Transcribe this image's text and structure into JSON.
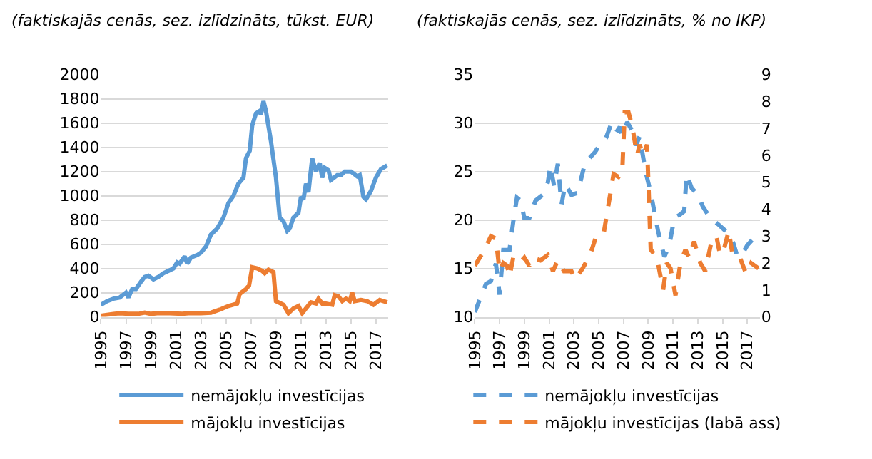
{
  "chart_data": [
    {
      "type": "line",
      "title": "(faktiskajās cenās, sez. izlīdzināts, tūkst. EUR)",
      "line_style": "solid",
      "grid": "y",
      "legend": "bottom",
      "xlim": [
        1995,
        2018
      ],
      "xticks": [
        1995,
        1997,
        1999,
        2001,
        2003,
        2005,
        2007,
        2009,
        2011,
        2013,
        2015,
        2017
      ],
      "ylim": [
        0,
        2000
      ],
      "yticks": [
        0,
        200,
        400,
        600,
        800,
        1000,
        1200,
        1400,
        1600,
        1800,
        2000
      ],
      "series": [
        {
          "name": "nemājokļu investīcijas",
          "color": "#5b9bd5",
          "x": [
            1995.0,
            1995.5,
            1996.0,
            1996.5,
            1997.0,
            1997.2,
            1997.5,
            1997.8,
            1998.2,
            1998.5,
            1998.8,
            1999.2,
            1999.6,
            2000.0,
            2000.4,
            2000.8,
            2001.1,
            2001.3,
            2001.7,
            2001.9,
            2002.2,
            2002.7,
            2003.0,
            2003.4,
            2003.8,
            2004.3,
            2004.8,
            2005.2,
            2005.6,
            2006.0,
            2006.4,
            2006.6,
            2006.9,
            2007.1,
            2007.4,
            2007.7,
            2007.8,
            2008.0,
            2008.2,
            2008.6,
            2009.0,
            2009.3,
            2009.6,
            2009.9,
            2010.1,
            2010.4,
            2010.8,
            2011.0,
            2011.2,
            2011.4,
            2011.6,
            2011.9,
            2012.2,
            2012.5,
            2012.7,
            2012.9,
            2013.2,
            2013.4,
            2013.9,
            2014.2,
            2014.5,
            2015.0,
            2015.5,
            2015.7,
            2016.0,
            2016.2,
            2016.6,
            2017.0,
            2017.4,
            2017.9
          ],
          "values": [
            100,
            130,
            150,
            160,
            200,
            160,
            230,
            230,
            290,
            330,
            340,
            310,
            330,
            360,
            380,
            400,
            450,
            440,
            500,
            440,
            490,
            510,
            530,
            580,
            680,
            730,
            820,
            940,
            1000,
            1100,
            1150,
            1310,
            1370,
            1580,
            1680,
            1700,
            1670,
            1780,
            1700,
            1450,
            1150,
            820,
            790,
            710,
            730,
            820,
            860,
            990,
            970,
            1100,
            1030,
            1310,
            1200,
            1270,
            1150,
            1230,
            1210,
            1130,
            1170,
            1170,
            1200,
            1200,
            1160,
            1170,
            990,
            970,
            1040,
            1150,
            1220,
            1250
          ]
        },
        {
          "name": "mājokļu investīcijas",
          "color": "#ed7d31",
          "x": [
            1995.0,
            1996.0,
            1996.5,
            1997.2,
            1998.0,
            1998.5,
            1999.0,
            1999.5,
            2000.5,
            2001.5,
            2002.0,
            2003.0,
            2003.8,
            2004.5,
            2005.2,
            2005.9,
            2006.1,
            2006.6,
            2006.85,
            2007.1,
            2007.5,
            2007.9,
            2008.1,
            2008.4,
            2008.8,
            2009.0,
            2009.6,
            2010.0,
            2010.4,
            2010.8,
            2011.1,
            2011.4,
            2011.8,
            2012.2,
            2012.4,
            2012.7,
            2013.0,
            2013.5,
            2013.7,
            2014.0,
            2014.3,
            2014.6,
            2014.9,
            2015.1,
            2015.3,
            2015.8,
            2016.3,
            2016.8,
            2017.3,
            2017.9
          ],
          "values": [
            10,
            25,
            30,
            25,
            25,
            35,
            25,
            30,
            30,
            25,
            30,
            30,
            35,
            60,
            90,
            110,
            190,
            230,
            260,
            410,
            400,
            380,
            360,
            390,
            370,
            130,
            100,
            30,
            70,
            90,
            30,
            70,
            120,
            110,
            150,
            110,
            110,
            100,
            180,
            170,
            130,
            150,
            130,
            200,
            130,
            140,
            130,
            100,
            140,
            120
          ]
        }
      ]
    },
    {
      "type": "line",
      "title": "(faktiskajās cenās, sez. izlīdzināts, % no IKP)",
      "line_style": "dashed",
      "grid": "y",
      "legend": "bottom",
      "xlim": [
        1995,
        2018
      ],
      "xticks": [
        1995,
        1997,
        1999,
        2001,
        2003,
        2005,
        2007,
        2009,
        2011,
        2013,
        2015,
        2017
      ],
      "ylim": [
        10,
        35
      ],
      "yticks": [
        10,
        15,
        20,
        25,
        30,
        35
      ],
      "y2lim": [
        0,
        9
      ],
      "y2ticks": [
        0,
        1,
        2,
        3,
        4,
        5,
        6,
        7,
        8,
        9
      ],
      "series": [
        {
          "name": "nemājokļu investīcijas",
          "color": "#5b9bd5",
          "x": [
            1995.0,
            1995.9,
            1996.3,
            1996.7,
            1997.0,
            1997.3,
            1997.8,
            1998.1,
            1998.4,
            1998.7,
            1999.0,
            1999.4,
            1999.9,
            2000.5,
            2000.9,
            2001.1,
            2001.4,
            2001.7,
            2002.0,
            2002.3,
            2002.8,
            2003.3,
            2003.9,
            2004.7,
            2005.2,
            2005.6,
            2006.0,
            2006.4,
            2006.7,
            2006.9,
            2007.3,
            2007.7,
            2008.0,
            2008.3,
            2008.8,
            2009.2,
            2009.8,
            2010.3,
            2010.7,
            2011.1,
            2011.5,
            2011.9,
            2012.1,
            2012.5,
            2013.0,
            2013.4,
            2014.0,
            2014.7,
            2015.3,
            2015.8,
            2016.2,
            2016.6,
            2017.0,
            2017.5,
            2017.9
          ],
          "values": [
            10.5,
            13.4,
            13.7,
            15.5,
            12.3,
            16.9,
            16.9,
            19.8,
            22.3,
            22,
            20.2,
            20.2,
            22,
            22.6,
            23.9,
            25.6,
            23.5,
            25.8,
            21.6,
            23.7,
            22.6,
            22.8,
            25.9,
            27,
            28,
            28.5,
            29.9,
            29,
            29.6,
            28.7,
            30.1,
            29.2,
            27.7,
            28.6,
            24.9,
            22.8,
            18.8,
            16.2,
            17.4,
            20.2,
            20.5,
            20.9,
            24.7,
            23.3,
            22.6,
            21.4,
            20.2,
            19.5,
            18.8,
            17.9,
            16.2,
            16.5,
            17.4,
            18.1,
            18.1
          ]
        },
        {
          "name": "mājokļu investīcijas (labā ass)",
          "color": "#ed7d31",
          "axis": "y2",
          "x": [
            1995.0,
            1995.8,
            1996.3,
            1996.7,
            1997.0,
            1997.3,
            1997.6,
            1997.8,
            1998.1,
            1998.6,
            1999.0,
            1999.4,
            1999.7,
            2000.3,
            2000.9,
            2001.3,
            2001.7,
            2002.2,
            2002.8,
            2003.1,
            2003.7,
            2004.3,
            2004.8,
            2005.4,
            2005.8,
            2006.2,
            2006.6,
            2006.9,
            2007.1,
            2007.4,
            2007.7,
            2008.1,
            2008.3,
            2008.6,
            2008.9,
            2009.2,
            2009.7,
            2010.2,
            2010.5,
            2010.8,
            2011.2,
            2011.6,
            2012.0,
            2012.3,
            2012.7,
            2013.2,
            2013.6,
            2014.1,
            2014.5,
            2014.8,
            2015.1,
            2015.5,
            2015.8,
            2016.4,
            2016.9,
            2017.3,
            2017.9
          ],
          "values": [
            1.9,
            2.5,
            3.0,
            2.9,
            1.7,
            2.0,
            1.9,
            1.5,
            2.2,
            2.0,
            2.2,
            1.9,
            2.2,
            2.1,
            2.3,
            1.7,
            2.1,
            1.7,
            1.7,
            1.4,
            1.8,
            2.3,
            3.0,
            3.1,
            4.2,
            5.3,
            5.2,
            5.4,
            7.6,
            7.6,
            7.1,
            6.0,
            6.4,
            6.0,
            6.4,
            2.5,
            2.2,
            1.0,
            2.0,
            1.8,
            0.8,
            2.0,
            2.5,
            2.2,
            2.8,
            2.0,
            1.7,
            2.8,
            3.0,
            2.3,
            2.5,
            3.2,
            2.3,
            2.2,
            1.6,
            2.0,
            1.8
          ]
        }
      ]
    }
  ]
}
